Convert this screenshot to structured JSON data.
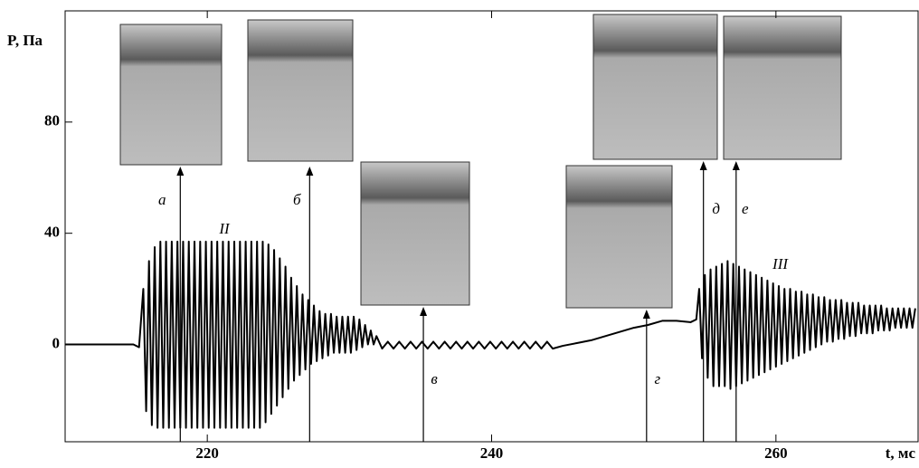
{
  "chart_data": {
    "type": "line",
    "y_label": "P, Па",
    "x_label": "t, мс",
    "x": [
      210,
      214.8,
      215.2,
      215.5,
      215.7,
      215.9,
      216.1,
      216.3,
      216.5,
      216.7,
      216.9,
      217.1,
      217.3,
      217.5,
      217.7,
      217.9,
      218.1,
      218.3,
      218.5,
      218.7,
      218.9,
      219.1,
      219.3,
      219.5,
      219.7,
      219.9,
      220.1,
      220.3,
      220.5,
      220.7,
      220.9,
      221.1,
      221.3,
      221.5,
      221.7,
      221.9,
      222.1,
      222.3,
      222.5,
      222.7,
      222.9,
      223.1,
      223.3,
      223.5,
      223.7,
      223.9,
      224.1,
      224.3,
      224.5,
      224.7,
      224.9,
      225.1,
      225.3,
      225.5,
      225.7,
      225.9,
      226.1,
      226.3,
      226.5,
      226.7,
      226.9,
      227.1,
      227.3,
      227.5,
      227.7,
      227.9,
      228.1,
      228.3,
      228.5,
      228.7,
      228.9,
      229.1,
      229.3,
      229.5,
      229.7,
      229.9,
      230.1,
      230.3,
      230.5,
      230.7,
      230.9,
      231.1,
      231.3,
      231.5,
      231.7,
      231.9,
      232.3,
      232.7,
      233.1,
      233.5,
      233.9,
      234.3,
      234.7,
      235.1,
      235.5,
      235.9,
      236.3,
      236.7,
      237.1,
      237.5,
      237.9,
      238.3,
      238.7,
      239.1,
      239.5,
      239.9,
      240.3,
      240.7,
      241.1,
      241.5,
      241.9,
      242.3,
      242.7,
      243.1,
      243.5,
      243.9,
      244.3,
      245,
      246,
      247,
      248,
      249,
      250,
      251,
      252,
      253,
      254,
      254.4,
      254.6,
      254.8,
      255.0,
      255.2,
      255.4,
      255.6,
      255.8,
      256.0,
      256.2,
      256.4,
      256.6,
      256.8,
      257.0,
      257.2,
      257.4,
      257.6,
      257.8,
      258.0,
      258.2,
      258.4,
      258.6,
      258.8,
      259.0,
      259.2,
      259.4,
      259.6,
      259.8,
      260.0,
      260.2,
      260.4,
      260.6,
      260.8,
      261.0,
      261.2,
      261.4,
      261.6,
      261.8,
      262.0,
      262.2,
      262.4,
      262.6,
      262.8,
      263.0,
      263.2,
      263.4,
      263.6,
      263.8,
      264.0,
      264.2,
      264.4,
      264.6,
      264.8,
      265.0,
      265.2,
      265.4,
      265.6,
      265.8,
      266.0,
      266.2,
      266.4,
      266.6,
      266.8,
      267.0,
      267.2,
      267.4,
      267.6,
      267.8,
      268.0,
      268.2,
      268.4,
      268.6,
      268.8,
      269.0,
      269.2,
      269.4,
      269.6,
      269.8
    ],
    "series": [
      {
        "color": "#000000",
        "values": [
          0,
          0,
          -1,
          20,
          -24,
          30,
          -29,
          35,
          -30,
          37,
          -30,
          37,
          -30,
          37,
          -30,
          37,
          -30,
          37,
          -30,
          37,
          -30,
          37,
          -30,
          37,
          -30,
          37,
          -30,
          37,
          -30,
          37,
          -30,
          37,
          -30,
          37,
          -30,
          37,
          -30,
          37,
          -30,
          37,
          -30,
          37,
          -30,
          37,
          -30,
          37,
          -28,
          36,
          -25,
          34,
          -22,
          31,
          -19,
          28,
          -16,
          24,
          -13,
          21,
          -11,
          18,
          -9,
          16,
          -7,
          14,
          -6,
          12,
          -5,
          11,
          -4,
          11,
          -3,
          10,
          -3,
          10,
          -3,
          10,
          -3,
          10,
          -2,
          9,
          -1,
          7,
          0,
          5,
          0,
          3,
          -1.5,
          1,
          -1.5,
          1,
          -1.5,
          1,
          -1.5,
          1,
          -1.5,
          1,
          -1.5,
          1,
          -1.5,
          1,
          -1.5,
          1,
          -1.5,
          1,
          -1.5,
          1,
          -1.5,
          1,
          -1.5,
          1,
          -1.5,
          1,
          -1.5,
          1,
          -1.5,
          1,
          -1.5,
          -0.5,
          0.5,
          1.5,
          3,
          4.5,
          6,
          7,
          8.5,
          8.5,
          8,
          9,
          20,
          -5,
          25,
          -12,
          27,
          -15,
          28,
          -15,
          29,
          -15,
          30,
          -16,
          29,
          -15,
          28,
          -14,
          27,
          -13,
          26,
          -12,
          25,
          -11,
          24,
          -10,
          23,
          -9,
          22,
          -8,
          21,
          -7,
          20,
          -6,
          20,
          -5,
          19,
          -4,
          19,
          -3,
          18,
          -2,
          18,
          -1,
          17,
          0,
          17,
          1,
          16,
          1,
          16,
          2,
          16,
          2,
          15,
          3,
          15,
          3,
          15,
          4,
          14,
          4,
          14,
          4,
          14,
          5,
          14,
          5,
          13,
          5,
          13,
          6,
          13,
          6,
          13,
          6,
          13,
          6,
          13
        ]
      }
    ],
    "xlim": [
      210,
      270
    ],
    "ylim": [
      -35,
      120
    ],
    "xticks": [
      220,
      240,
      260
    ],
    "yticks": [
      0,
      40,
      80
    ],
    "annotations": [
      {
        "label": "а",
        "x": 218.1
      },
      {
        "label": "б",
        "x": 227.2
      },
      {
        "label": "в",
        "x": 235.2
      },
      {
        "label": "г",
        "x": 250.9
      },
      {
        "label": "д",
        "x": 254.9
      },
      {
        "label": "е",
        "x": 257.2
      }
    ],
    "regions": [
      {
        "label": "II",
        "x": 221.2
      },
      {
        "label": "III",
        "x": 260.3
      }
    ]
  }
}
